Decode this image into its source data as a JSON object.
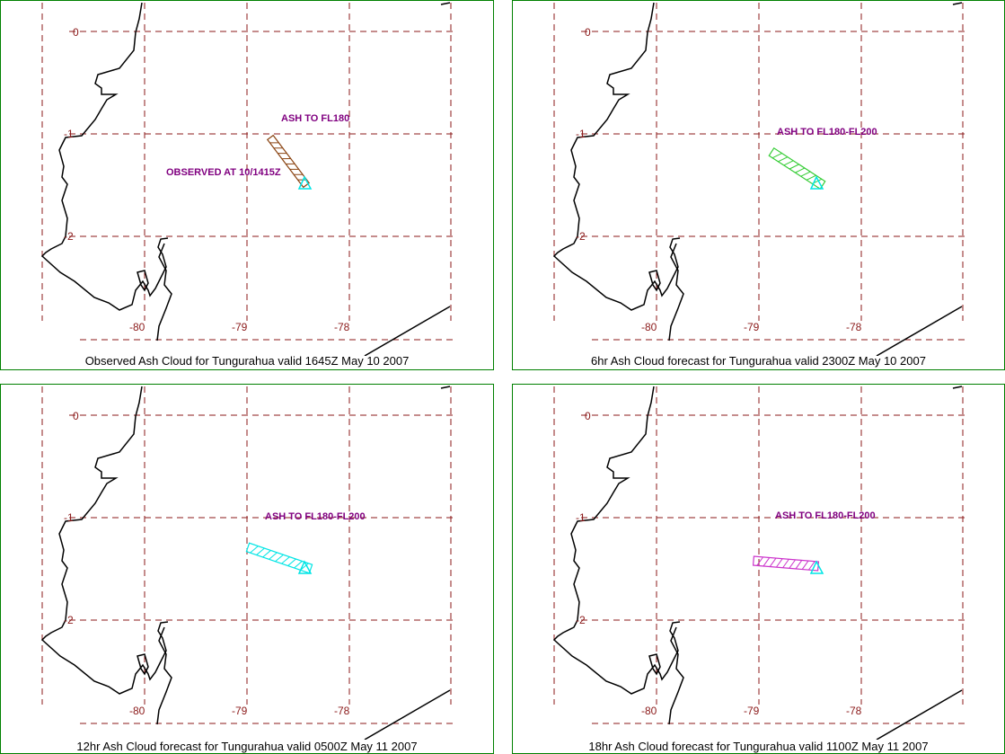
{
  "panels": [
    {
      "caption": "Observed Ash Cloud for Tungurahua valid 1645Z May 10 2007",
      "cloud_color": "#8b4513",
      "annotations": [
        "ASH TO FL180",
        "OBSERVED AT 10/1415Z"
      ]
    },
    {
      "caption": "6hr Ash Cloud forecast for Tungurahua valid 2300Z May 10 2007",
      "cloud_color": "#33cc33",
      "annotations": [
        "ASH TO FL180-FL200"
      ]
    },
    {
      "caption": "12hr Ash Cloud forecast for Tungurahua valid 0500Z May 11 2007",
      "cloud_color": "#00e5e5",
      "annotations": [
        "ASH TO FL180-FL200"
      ]
    },
    {
      "caption": "18hr Ash Cloud forecast for Tungurahua valid 1100Z May 11 2007",
      "cloud_color": "#cc33cc",
      "annotations": [
        "ASH TO FL180-FL200"
      ]
    }
  ],
  "lat_labels": [
    "0",
    "-1",
    "-2"
  ],
  "lon_labels": [
    "-80",
    "-79",
    "-78"
  ],
  "colors": {
    "grid": "#8b1a1a",
    "coastline": "#000000",
    "volcano_marker": "#00e5e5",
    "annotation": "#800080",
    "frame": "#008000"
  },
  "icons": {
    "volcano": "triangle-marker-icon"
  }
}
